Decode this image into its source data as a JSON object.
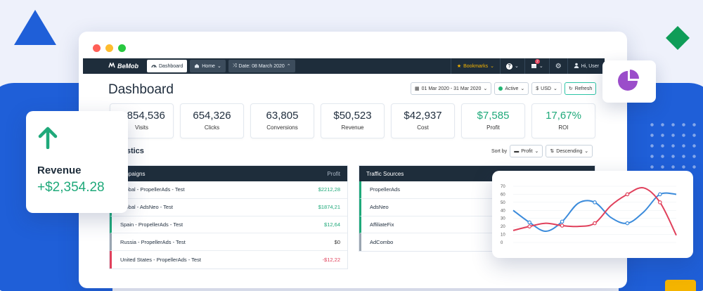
{
  "navbar": {
    "brand": "BeMob",
    "tabs": [
      {
        "label": "Dashboard"
      },
      {
        "label": "Home"
      },
      {
        "label": "Date: 08 March 2020"
      }
    ],
    "bookmarks": "Bookmarks",
    "user": "Hi, User",
    "notification_count": "2"
  },
  "page": {
    "title": "Dashboard",
    "date_range": "01 Mar 2020 - 31 Mar 2020",
    "status": "Active",
    "currency": "USD",
    "refresh": "Refresh"
  },
  "kpis": [
    {
      "value": "1,854,536",
      "label": "Visits"
    },
    {
      "value": "654,326",
      "label": "Clicks"
    },
    {
      "value": "63,805",
      "label": "Conversions"
    },
    {
      "value": "$50,523",
      "label": "Revenue"
    },
    {
      "value": "$42,937",
      "label": "Cost"
    },
    {
      "value": "$7,585",
      "label": "Profit"
    },
    {
      "value": "17,67%",
      "label": "ROI"
    }
  ],
  "statistics": {
    "title": "Statistics",
    "sort_by_label": "Sort by",
    "sort_field": "Profit",
    "sort_order": "Descending"
  },
  "campaigns_table": {
    "header": "Campaigns",
    "column": "Profit",
    "rows": [
      {
        "name": "Global - PropellerAds - Test",
        "profit": "$2212,28"
      },
      {
        "name": "Global - AdsNeo - Test",
        "profit": "$1874,21"
      },
      {
        "name": "Spain - PropellerAds - Test",
        "profit": "$12,64"
      },
      {
        "name": "Russia - PropellerAds - Test",
        "profit": "$0"
      },
      {
        "name": "United States - PropellerAds - Test",
        "profit": "-$12,22"
      }
    ]
  },
  "traffic_table": {
    "header": "Traffic Sources",
    "rows": [
      {
        "name": "PropellerAds"
      },
      {
        "name": "AdsNeo"
      },
      {
        "name": "AffiliateFix"
      },
      {
        "name": "AdCombo"
      }
    ]
  },
  "revenue_card": {
    "label": "Revenue",
    "value": "+$2,354.28"
  },
  "chart_data": {
    "type": "line",
    "title": "",
    "xlabel": "",
    "ylabel": "",
    "ylim": [
      0,
      70
    ],
    "yticks": [
      "70",
      "60",
      "50",
      "40",
      "30",
      "20",
      "10",
      "0"
    ],
    "x": [
      0,
      1,
      2,
      3,
      4,
      5,
      6,
      7,
      8,
      9,
      10
    ],
    "series": [
      {
        "color": "#3b8bdb",
        "values": [
          40,
          25,
          14,
          26,
          49,
          50,
          31,
          24,
          38,
          60,
          60
        ]
      },
      {
        "color": "#e0405b",
        "values": [
          15,
          20,
          24,
          21,
          20,
          24,
          46,
          60,
          68,
          50,
          9
        ]
      }
    ],
    "grid": true
  },
  "colors": {
    "navbar": "#1e2d3b",
    "accent_green": "#1fa97a",
    "accent_red": "#e0405b",
    "brand_blue": "#1f5fd8",
    "bookmark_yellow": "#f4b400",
    "pie_purple": "#9b4dca"
  }
}
